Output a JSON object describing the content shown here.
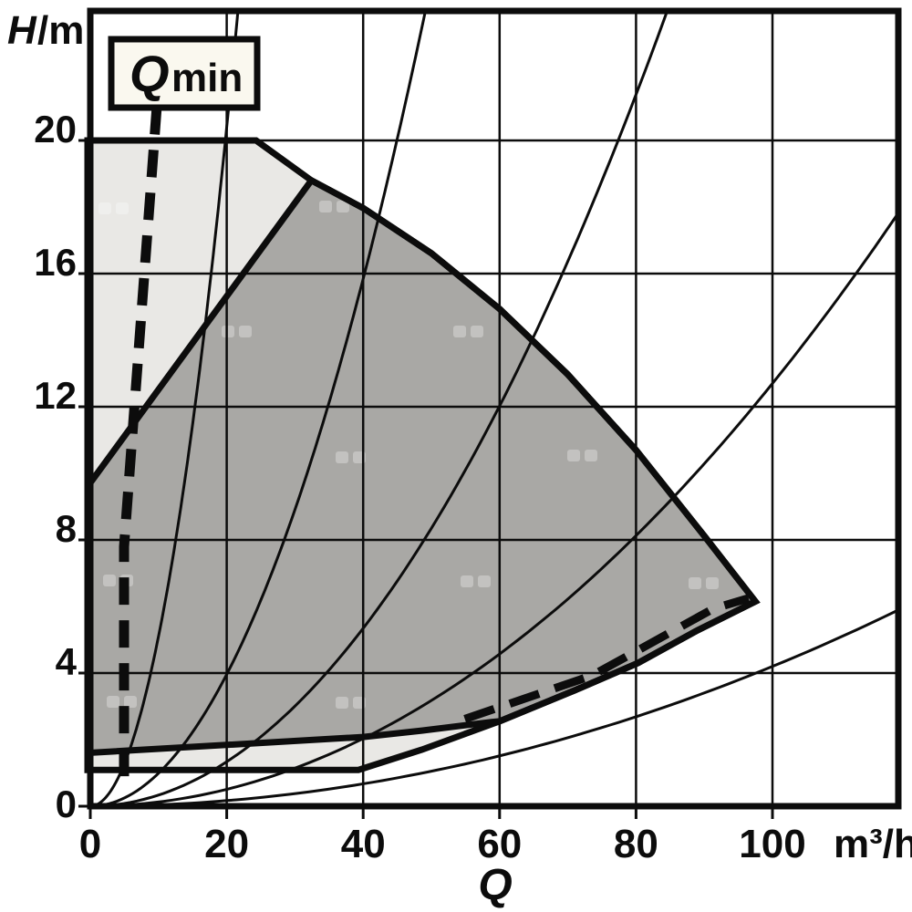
{
  "chart_data": {
    "type": "area",
    "title": "",
    "description": "Pump operating range chart: head H/m versus flow Q m3/h, outer and inner duty envelopes, system characteristic curves, Qmin limit line",
    "x_axis": {
      "symbol": "Q",
      "unit": "m³/h",
      "ticks": [
        0,
        20,
        40,
        60,
        80,
        100
      ],
      "lim": [
        0,
        118.3
      ]
    },
    "y_axis": {
      "symbol": "H",
      "unit": "/m",
      "ticks": [
        0,
        4,
        8,
        12,
        16,
        20
      ],
      "lim": [
        0,
        23.9
      ]
    },
    "grid": true,
    "colors": {
      "outer_region": "#e9e8e5",
      "inner_region": "#a9a8a5",
      "line": "#0c0c0c",
      "qmin_box_fill": "#faf8ef"
    },
    "regions": [
      {
        "name": "outer-operating-range",
        "fill": "#e9e8e5",
        "points": [
          [
            -0.4,
            20
          ],
          [
            24.3,
            20
          ],
          [
            32.4,
            18.8
          ],
          [
            40,
            17.97
          ],
          [
            50,
            16.61
          ],
          [
            60,
            14.94
          ],
          [
            70,
            12.97
          ],
          [
            80,
            10.7
          ],
          [
            90,
            8.12
          ],
          [
            97.5,
            6.15
          ],
          [
            88.8,
            5.26
          ],
          [
            80.3,
            4.3
          ],
          [
            71,
            3.48
          ],
          [
            60,
            2.55
          ],
          [
            48.6,
            1.7
          ],
          [
            39.3,
            1.09
          ],
          [
            -0.4,
            1.09
          ]
        ]
      },
      {
        "name": "inner-operating-range",
        "fill": "#a9a8a5",
        "points": [
          [
            -0.4,
            9.6
          ],
          [
            32.4,
            18.8
          ],
          [
            40,
            17.97
          ],
          [
            50,
            16.61
          ],
          [
            60,
            14.94
          ],
          [
            70,
            12.97
          ],
          [
            80,
            10.7
          ],
          [
            90,
            8.12
          ],
          [
            97.5,
            6.15
          ],
          [
            88.8,
            5.26
          ],
          [
            80.3,
            4.3
          ],
          [
            71,
            3.48
          ],
          [
            60,
            2.55
          ],
          [
            58.8,
            2.53
          ],
          [
            48.6,
            2.27
          ],
          [
            40,
            2.08
          ],
          [
            -0.4,
            1.6
          ]
        ]
      }
    ],
    "system_curves": {
      "formula": "H = k * Q^2",
      "k_values": [
        0.051,
        0.0099,
        0.00334,
        0.00127,
        0.00042
      ]
    },
    "qmin_line": {
      "label": "Qmin",
      "dashed": true,
      "points": [
        [
          9.75,
          21.0
        ],
        [
          4.95,
          7.8
        ],
        [
          4.95,
          0.7
        ]
      ]
    },
    "min_flow_dashed_line": {
      "dashed": true,
      "points": [
        [
          54.9,
          2.62
        ],
        [
          73.6,
          3.93
        ],
        [
          91.3,
          5.93
        ],
        [
          96.5,
          6.25
        ]
      ]
    }
  },
  "labels": {
    "y_axis_symbol": "H",
    "y_axis_unit": "/m",
    "x_axis_symbol": "Q",
    "x_axis_unit": "m³/h",
    "qmin_symbol": "Q",
    "qmin_subscript": "min"
  }
}
